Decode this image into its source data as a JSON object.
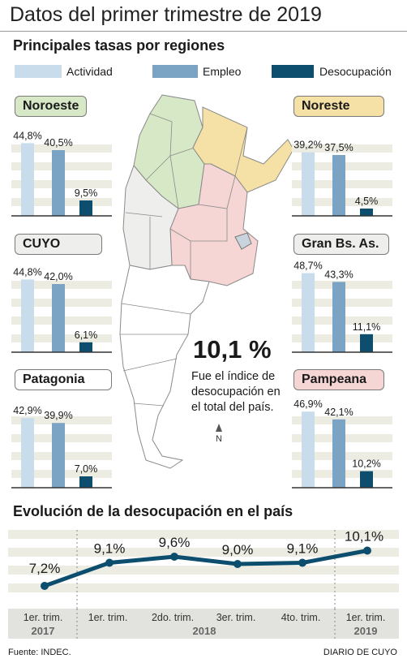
{
  "title": "Datos del primer trimestre de 2019",
  "subtitle": "Principales tasas por regiones",
  "legend": [
    {
      "label": "Actividad",
      "color": "#c9dcec"
    },
    {
      "label": "Empleo",
      "color": "#7ba3c4"
    },
    {
      "label": "Desocupación",
      "color": "#0d4e6e"
    }
  ],
  "highlight": {
    "value": "10,1 %",
    "text": "Fue el índice de desocupación en el total del país."
  },
  "section_title": "Evolución de la desocupación en el país",
  "footer": {
    "source": "Fuente: INDEC.",
    "credit": "DIARIO DE CUYO"
  },
  "chart_data": [
    {
      "type": "bar",
      "region": "Noroeste",
      "badge_color": "#d7e8c7",
      "categories": [
        "Actividad",
        "Empleo",
        "Desocupación"
      ],
      "values": [
        44.8,
        40.5,
        9.5
      ],
      "labels": [
        "44,8%",
        "40,5%",
        "9,5%"
      ],
      "ylim": [
        0,
        50
      ]
    },
    {
      "type": "bar",
      "region": "Noreste",
      "badge_color": "#f5e1a6",
      "categories": [
        "Actividad",
        "Empleo",
        "Desocupación"
      ],
      "values": [
        39.2,
        37.5,
        4.5
      ],
      "labels": [
        "39,2%",
        "37,5%",
        "4,5%"
      ],
      "ylim": [
        0,
        50
      ]
    },
    {
      "type": "bar",
      "region": "CUYO",
      "badge_color": "#eeeeec",
      "categories": [
        "Actividad",
        "Empleo",
        "Desocupación"
      ],
      "values": [
        44.8,
        42.0,
        6.1
      ],
      "labels": [
        "44,8%",
        "42,0%",
        "6,1%"
      ],
      "ylim": [
        0,
        50
      ]
    },
    {
      "type": "bar",
      "region": "Gran Bs. As.",
      "badge_color": "#eeeeec",
      "categories": [
        "Actividad",
        "Empleo",
        "Desocupación"
      ],
      "values": [
        48.7,
        43.3,
        11.1
      ],
      "labels": [
        "48,7%",
        "43,3%",
        "11,1%"
      ],
      "ylim": [
        0,
        50
      ]
    },
    {
      "type": "bar",
      "region": "Patagonia",
      "badge_color": "#ffffff",
      "categories": [
        "Actividad",
        "Empleo",
        "Desocupación"
      ],
      "values": [
        42.9,
        39.9,
        7.0
      ],
      "labels": [
        "42,9%",
        "39,9%",
        "7,0%"
      ],
      "ylim": [
        0,
        50
      ]
    },
    {
      "type": "bar",
      "region": "Pampeana",
      "badge_color": "#f6d5d5",
      "categories": [
        "Actividad",
        "Empleo",
        "Desocupación"
      ],
      "values": [
        46.9,
        42.1,
        10.2
      ],
      "labels": [
        "46,9%",
        "42,1%",
        "10,2%"
      ],
      "ylim": [
        0,
        50
      ]
    },
    {
      "type": "line",
      "categories": [
        "1er. trim.",
        "1er. trim.",
        "2do. trim.",
        "3er. trim.",
        "4to. trim.",
        "1er. trim."
      ],
      "years": [
        {
          "label": "2017",
          "span": [
            0,
            0
          ]
        },
        {
          "label": "2018",
          "span": [
            1,
            4
          ]
        },
        {
          "label": "2019",
          "span": [
            5,
            5
          ]
        }
      ],
      "values": [
        7.2,
        9.1,
        9.6,
        9.0,
        9.1,
        10.1
      ],
      "labels": [
        "7,2%",
        "9,1%",
        "9,6%",
        "9,0%",
        "9,1%",
        "10,1%"
      ],
      "ylim": [
        6,
        11
      ],
      "color": "#0d4e6e"
    }
  ]
}
